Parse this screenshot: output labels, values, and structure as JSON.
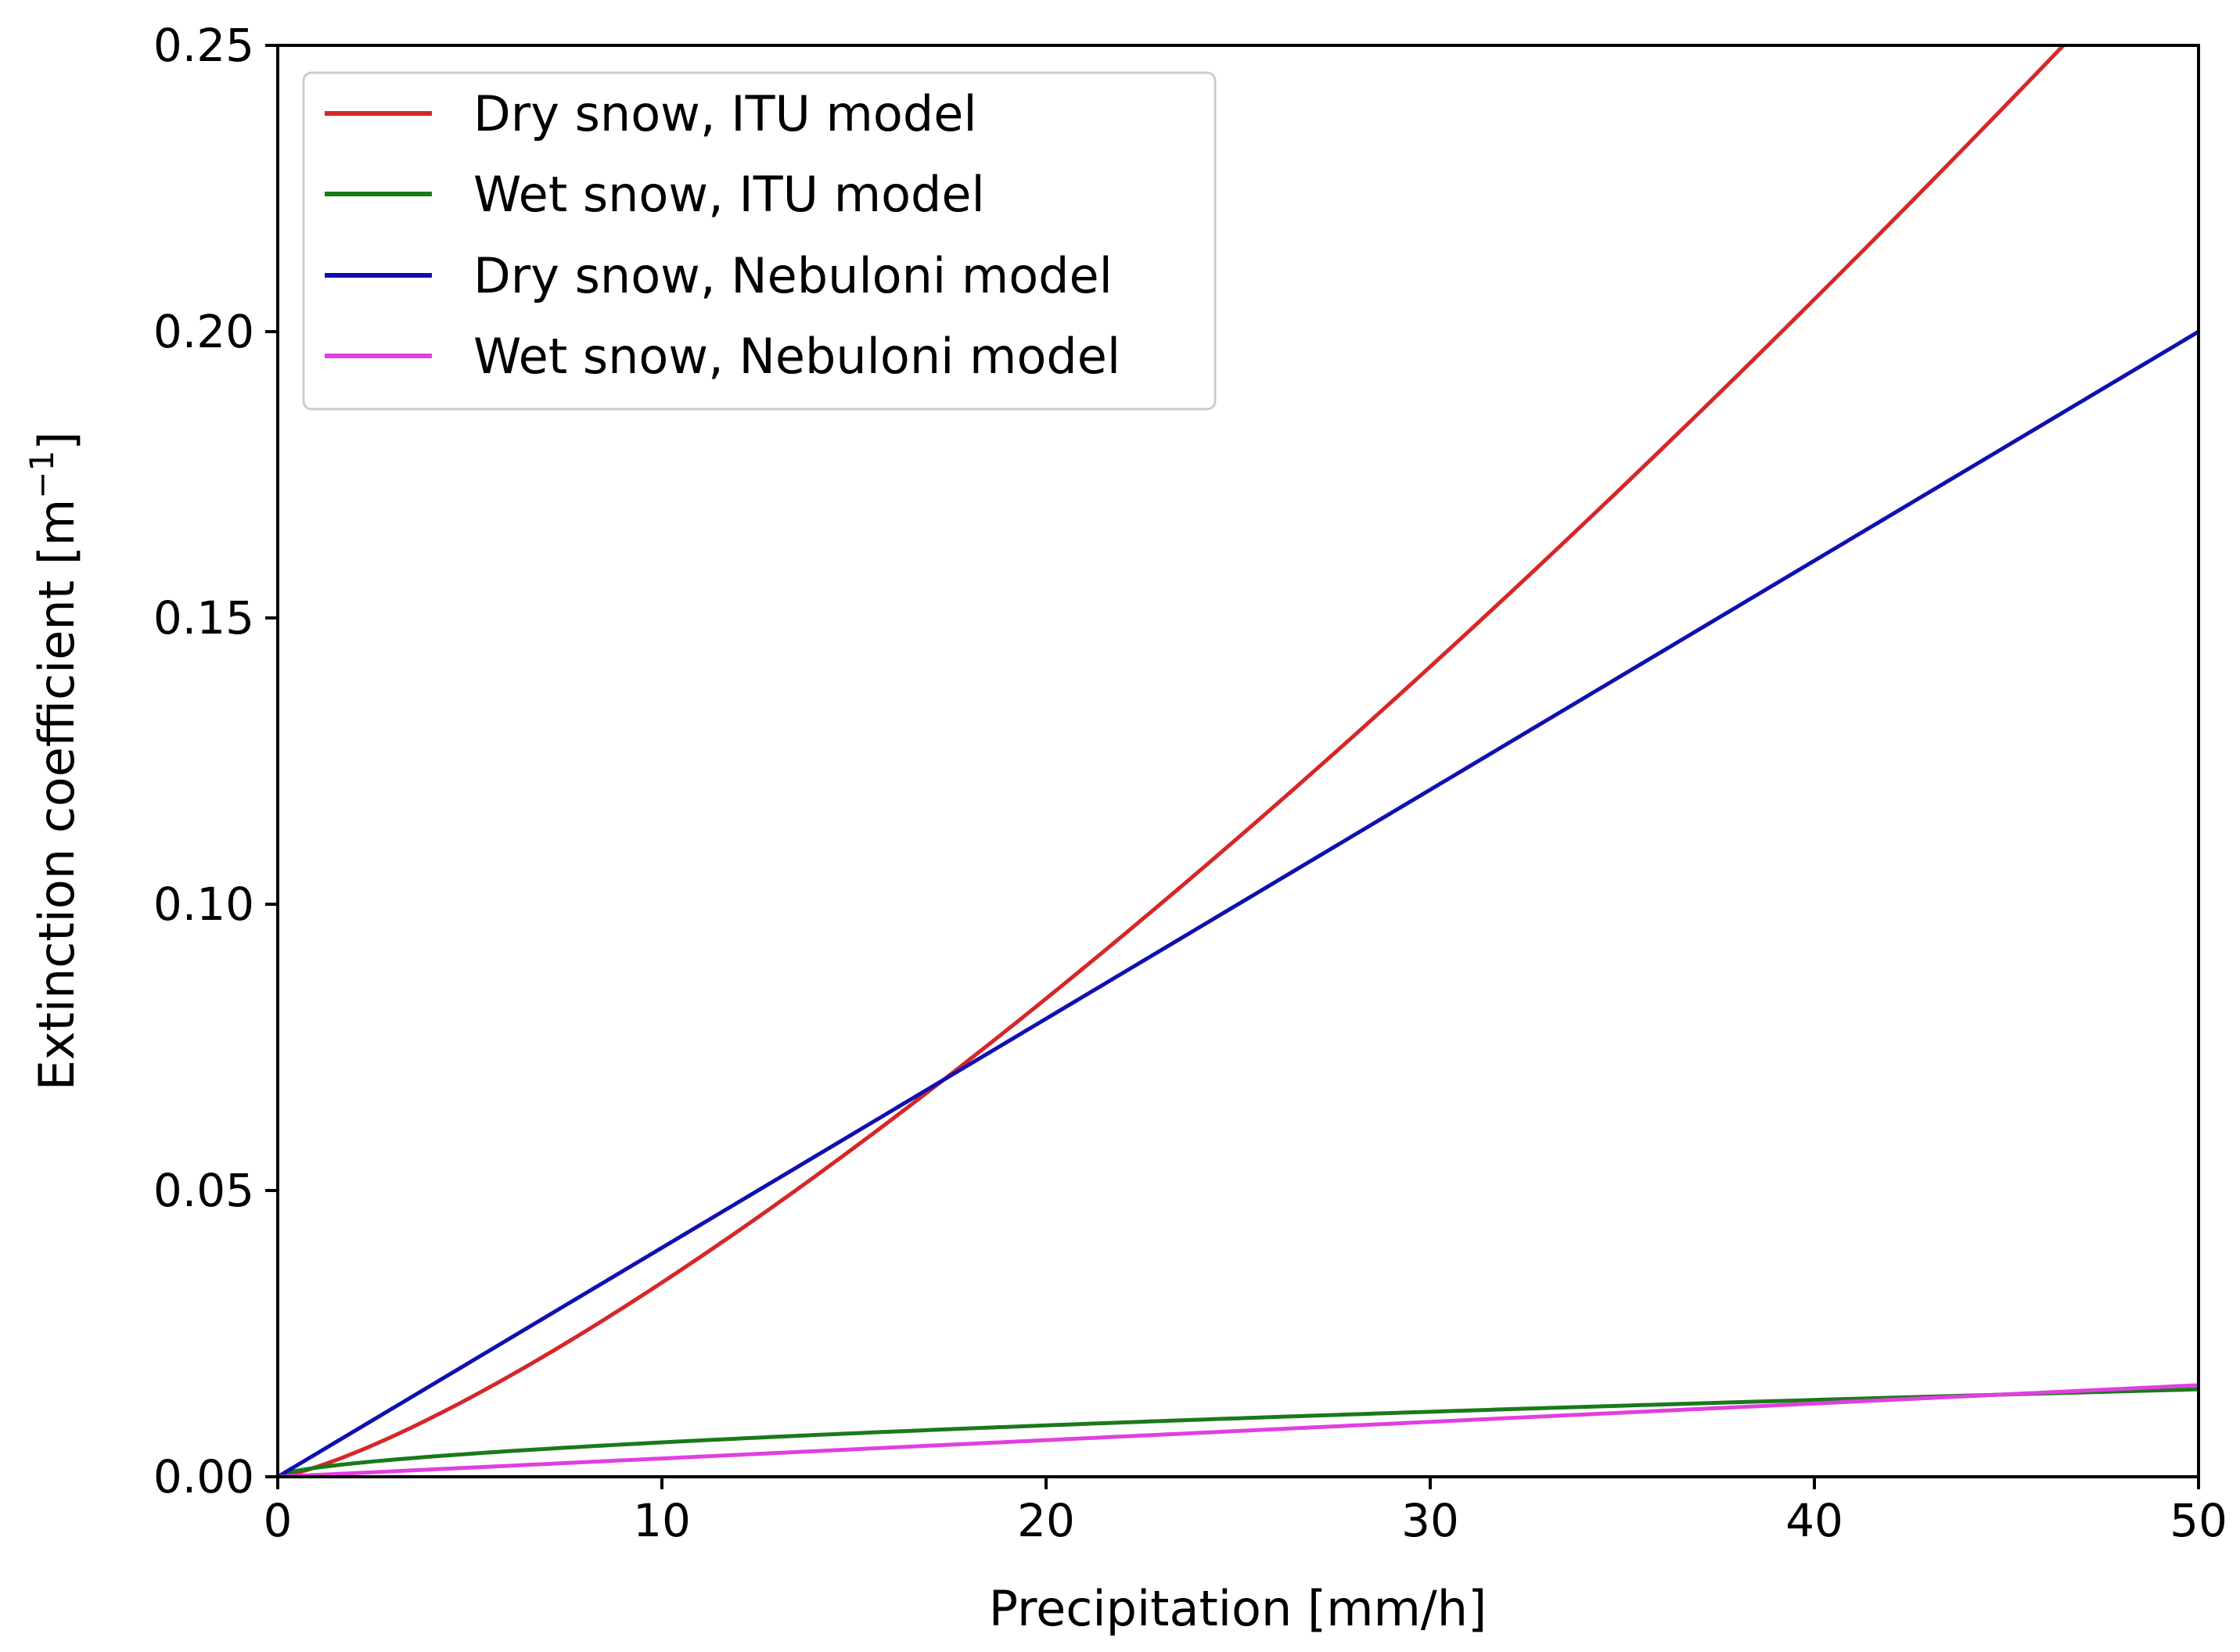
{
  "chart_data": {
    "type": "line",
    "xlabel": "Precipitation [mm/h]",
    "ylabel": {
      "text": "Extinction coefficient [m",
      "sup": "−1",
      "suffix": "]"
    },
    "xlim": [
      0,
      50
    ],
    "ylim": [
      0,
      0.25
    ],
    "xticks": [
      0,
      10,
      20,
      30,
      40,
      50
    ],
    "xtick_labels": [
      "0",
      "10",
      "20",
      "30",
      "40",
      "50"
    ],
    "yticks": [
      0,
      0.05,
      0.1,
      0.15,
      0.2,
      0.25
    ],
    "ytick_labels": [
      "0.00",
      "0.05",
      "0.10",
      "0.15",
      "0.20",
      "0.25"
    ],
    "grid": false,
    "legend_position": "top-left",
    "series": [
      {
        "name": "Dry snow, ITU model",
        "color": "#d62728",
        "model": "power",
        "a": 0.0017,
        "b": 1.3,
        "x_end": 50
      },
      {
        "name": "Wet snow, ITU model",
        "color": "#1a7a1a",
        "model": "power",
        "a": 0.00158,
        "b": 0.58,
        "x_end": 50
      },
      {
        "name": "Dry snow, Nebuloni model",
        "color": "#1010b0",
        "model": "power",
        "a": 0.004,
        "b": 1.0,
        "x_end": 50
      },
      {
        "name": "Wet snow, Nebuloni model",
        "color": "#e040e0",
        "model": "power",
        "a": 0.00032,
        "b": 1.0,
        "x_end": 50
      }
    ]
  }
}
